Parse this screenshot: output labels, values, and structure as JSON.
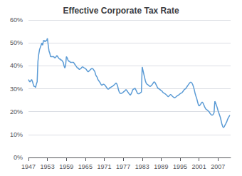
{
  "chart_data": {
    "type": "line",
    "title": "Effective Corporate Tax Rate",
    "color": "#5b9bd5",
    "grid": true,
    "xlim": [
      1947,
      2011
    ],
    "ylim": [
      0,
      0.6
    ],
    "xticks": [
      1947,
      1953,
      1959,
      1965,
      1971,
      1977,
      1983,
      1989,
      1995,
      2001,
      2007
    ],
    "yticks": [
      {
        "value": 0.0,
        "label": "0%"
      },
      {
        "value": 0.1,
        "label": "10%"
      },
      {
        "value": 0.2,
        "label": "20%"
      },
      {
        "value": 0.3,
        "label": "30%"
      },
      {
        "value": 0.4,
        "label": "40%"
      },
      {
        "value": 0.5,
        "label": "50%"
      },
      {
        "value": 0.6,
        "label": "60%"
      }
    ],
    "x": [
      1947.0,
      1947.25,
      1947.5,
      1947.75,
      1948.0,
      1948.25,
      1948.5,
      1948.75,
      1949.0,
      1949.25,
      1949.5,
      1949.75,
      1950.0,
      1950.25,
      1950.5,
      1950.75,
      1951.0,
      1951.25,
      1951.5,
      1951.75,
      1952.0,
      1952.25,
      1952.5,
      1952.75,
      1953.0,
      1953.25,
      1953.5,
      1953.75,
      1954.0,
      1954.25,
      1954.5,
      1954.75,
      1955.0,
      1955.25,
      1955.5,
      1955.75,
      1956.0,
      1956.25,
      1956.5,
      1956.75,
      1957.0,
      1957.25,
      1957.5,
      1957.75,
      1958.0,
      1958.25,
      1958.5,
      1958.75,
      1959.0,
      1959.25,
      1959.5,
      1959.75,
      1960.0,
      1960.25,
      1960.5,
      1960.75,
      1961.0,
      1961.25,
      1961.5,
      1961.75,
      1962.0,
      1962.25,
      1962.5,
      1962.75,
      1963.0,
      1963.25,
      1963.5,
      1963.75,
      1964.0,
      1964.25,
      1964.5,
      1964.75,
      1965.0,
      1965.25,
      1965.5,
      1965.75,
      1966.0,
      1966.25,
      1966.5,
      1966.75,
      1967.0,
      1967.25,
      1967.5,
      1967.75,
      1968.0,
      1968.25,
      1968.5,
      1968.75,
      1969.0,
      1969.25,
      1969.5,
      1969.75,
      1970.0,
      1970.25,
      1970.5,
      1970.75,
      1971.0,
      1971.25,
      1971.5,
      1971.75,
      1972.0,
      1972.25,
      1972.5,
      1972.75,
      1973.0,
      1973.25,
      1973.5,
      1973.75,
      1974.0,
      1974.25,
      1974.5,
      1974.75,
      1975.0,
      1975.25,
      1975.5,
      1975.75,
      1976.0,
      1976.25,
      1976.5,
      1976.75,
      1977.0,
      1977.25,
      1977.5,
      1977.75,
      1978.0,
      1978.25,
      1978.5,
      1978.75,
      1979.0,
      1979.25,
      1979.5,
      1979.75,
      1980.0,
      1980.25,
      1980.5,
      1980.75,
      1981.0,
      1981.25,
      1981.5,
      1981.75,
      1982.0,
      1982.25,
      1982.5,
      1982.75,
      1983.0,
      1983.25,
      1983.5,
      1983.75,
      1984.0,
      1984.25,
      1984.5,
      1984.75,
      1985.0,
      1985.25,
      1985.5,
      1985.75,
      1986.0,
      1986.25,
      1986.5,
      1986.75,
      1987.0,
      1987.25,
      1987.5,
      1987.75,
      1988.0,
      1988.25,
      1988.5,
      1988.75,
      1989.0,
      1989.25,
      1989.5,
      1989.75,
      1990.0,
      1990.25,
      1990.5,
      1990.75,
      1991.0,
      1991.25,
      1991.5,
      1991.75,
      1992.0,
      1992.25,
      1992.5,
      1992.75,
      1993.0,
      1993.25,
      1993.5,
      1993.75,
      1994.0,
      1994.25,
      1994.5,
      1994.75,
      1995.0,
      1995.25,
      1995.5,
      1995.75,
      1996.0,
      1996.25,
      1996.5,
      1996.75,
      1997.0,
      1997.25,
      1997.5,
      1997.75,
      1998.0,
      1998.25,
      1998.5,
      1998.75,
      1999.0,
      1999.25,
      1999.5,
      1999.75,
      2000.0,
      2000.25,
      2000.5,
      2000.75,
      2001.0,
      2001.25,
      2001.5,
      2001.75,
      2002.0,
      2002.25,
      2002.5,
      2002.75,
      2003.0,
      2003.25,
      2003.5,
      2003.75,
      2004.0,
      2004.25,
      2004.5,
      2004.75,
      2005.0,
      2005.25,
      2005.5,
      2005.75,
      2006.0,
      2006.25,
      2006.5,
      2006.75,
      2007.0,
      2007.25,
      2007.5,
      2007.75,
      2008.0,
      2008.25,
      2008.5,
      2008.75,
      2009.0,
      2009.25,
      2009.5,
      2009.75,
      2010.0,
      2010.25,
      2010.5,
      2010.75
    ],
    "values": [
      0.34,
      0.333,
      0.33,
      0.335,
      0.34,
      0.332,
      0.32,
      0.31,
      0.31,
      0.305,
      0.32,
      0.33,
      0.42,
      0.45,
      0.47,
      0.48,
      0.49,
      0.5,
      0.49,
      0.51,
      0.51,
      0.505,
      0.51,
      0.51,
      0.52,
      0.49,
      0.465,
      0.455,
      0.44,
      0.44,
      0.44,
      0.44,
      0.44,
      0.435,
      0.435,
      0.44,
      0.445,
      0.44,
      0.435,
      0.43,
      0.43,
      0.425,
      0.425,
      0.42,
      0.415,
      0.4,
      0.39,
      0.4,
      0.44,
      0.435,
      0.425,
      0.42,
      0.42,
      0.415,
      0.415,
      0.415,
      0.415,
      0.415,
      0.41,
      0.405,
      0.4,
      0.395,
      0.39,
      0.39,
      0.385,
      0.385,
      0.388,
      0.39,
      0.395,
      0.395,
      0.392,
      0.39,
      0.388,
      0.385,
      0.38,
      0.375,
      0.375,
      0.378,
      0.382,
      0.385,
      0.388,
      0.388,
      0.385,
      0.38,
      0.375,
      0.362,
      0.355,
      0.35,
      0.34,
      0.335,
      0.33,
      0.325,
      0.318,
      0.315,
      0.318,
      0.32,
      0.318,
      0.315,
      0.31,
      0.305,
      0.3,
      0.298,
      0.3,
      0.305,
      0.305,
      0.308,
      0.31,
      0.312,
      0.315,
      0.318,
      0.322,
      0.325,
      0.32,
      0.31,
      0.295,
      0.285,
      0.28,
      0.28,
      0.28,
      0.282,
      0.285,
      0.288,
      0.29,
      0.295,
      0.295,
      0.29,
      0.285,
      0.28,
      0.275,
      0.272,
      0.278,
      0.285,
      0.295,
      0.298,
      0.3,
      0.302,
      0.295,
      0.288,
      0.28,
      0.278,
      0.278,
      0.28,
      0.283,
      0.285,
      0.395,
      0.38,
      0.365,
      0.35,
      0.335,
      0.325,
      0.32,
      0.318,
      0.315,
      0.312,
      0.31,
      0.312,
      0.315,
      0.32,
      0.325,
      0.33,
      0.328,
      0.322,
      0.315,
      0.308,
      0.302,
      0.3,
      0.298,
      0.295,
      0.292,
      0.29,
      0.285,
      0.282,
      0.28,
      0.278,
      0.275,
      0.272,
      0.268,
      0.265,
      0.268,
      0.272,
      0.275,
      0.272,
      0.268,
      0.265,
      0.262,
      0.26,
      0.262,
      0.265,
      0.268,
      0.27,
      0.272,
      0.275,
      0.278,
      0.28,
      0.282,
      0.285,
      0.29,
      0.295,
      0.298,
      0.3,
      0.305,
      0.31,
      0.315,
      0.32,
      0.325,
      0.328,
      0.328,
      0.325,
      0.318,
      0.308,
      0.295,
      0.28,
      0.268,
      0.258,
      0.245,
      0.232,
      0.225,
      0.228,
      0.232,
      0.238,
      0.242,
      0.238,
      0.23,
      0.222,
      0.215,
      0.21,
      0.208,
      0.205,
      0.202,
      0.198,
      0.192,
      0.188,
      0.185,
      0.185,
      0.188,
      0.195,
      0.245,
      0.238,
      0.228,
      0.218,
      0.205,
      0.195,
      0.185,
      0.175,
      0.16,
      0.145,
      0.135,
      0.13,
      0.135,
      0.142,
      0.148,
      0.155,
      0.165,
      0.172,
      0.178,
      0.185
    ]
  }
}
